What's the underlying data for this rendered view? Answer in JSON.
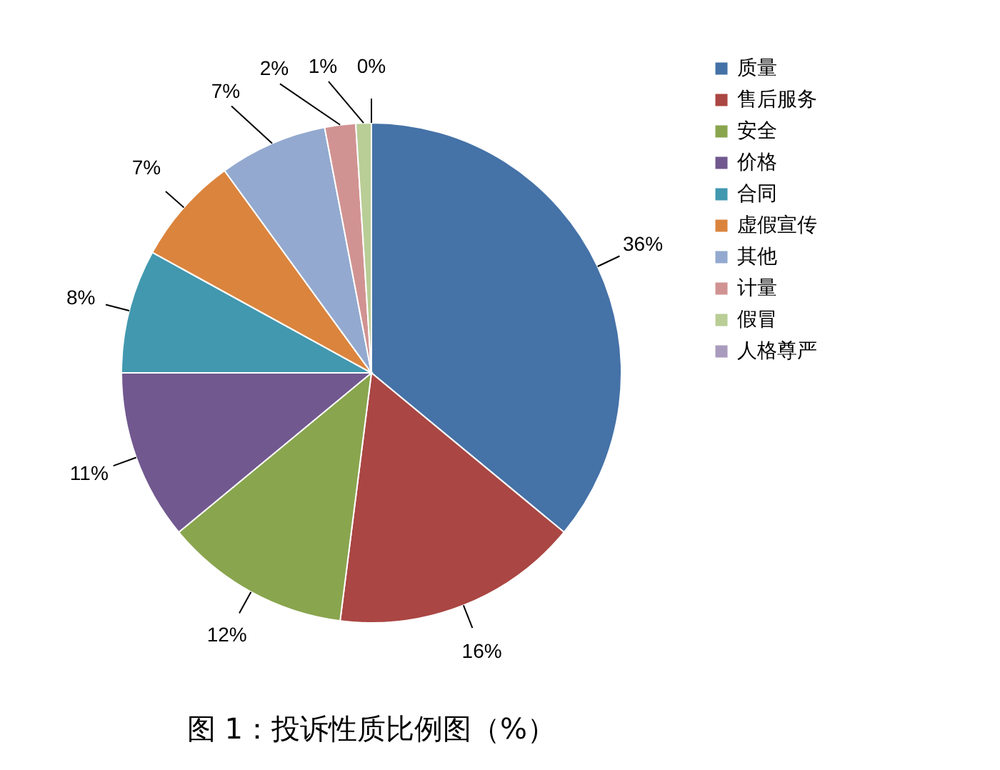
{
  "chart_data": {
    "type": "pie",
    "title": "图 1：投诉性质比例图（%）",
    "categories": [
      "质量",
      "售后服务",
      "安全",
      "价格",
      "合同",
      "虚假宣传",
      "其他",
      "计量",
      "假冒",
      "人格尊严"
    ],
    "values": [
      36,
      16,
      12,
      11,
      8,
      7,
      7,
      2,
      1,
      0
    ],
    "value_labels": [
      "36%",
      "16%",
      "12%",
      "11%",
      "8%",
      "7%",
      "7%",
      "2%",
      "1%",
      "0%"
    ],
    "colors": [
      "#4572a7",
      "#aa4643",
      "#89a54e",
      "#71588f",
      "#4198af",
      "#db843d",
      "#93a9cf",
      "#d19392",
      "#b9cd96",
      "#a99bbd"
    ],
    "legend": "right"
  }
}
